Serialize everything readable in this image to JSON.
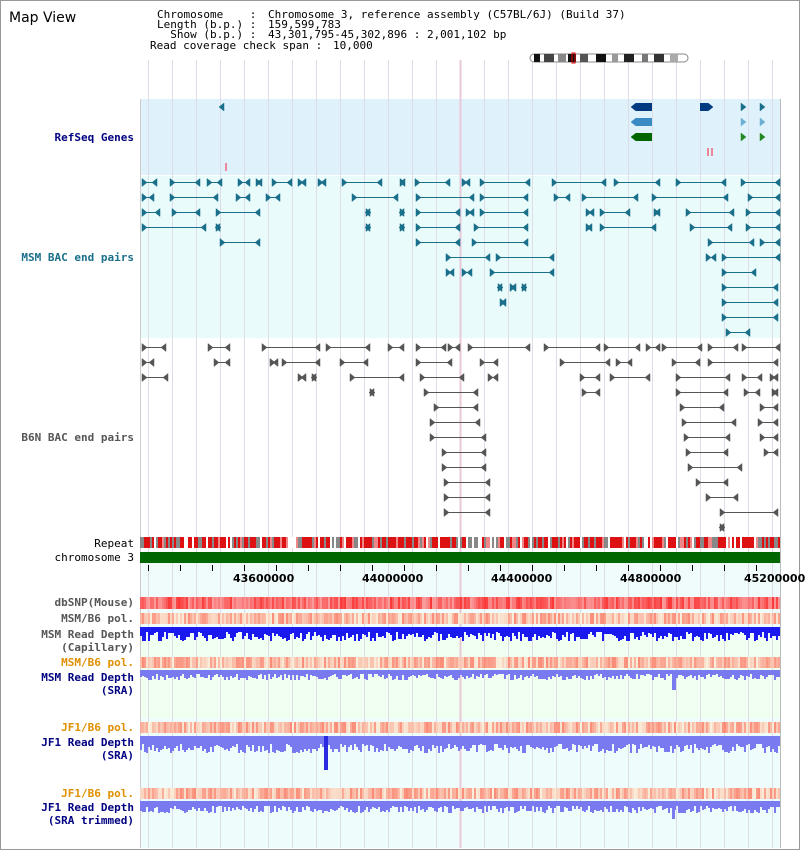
{
  "view_title": "Map View",
  "info": {
    "chromosome_label": "Chromosome    :",
    "chromosome_value": "Chromosome 3, reference assembly (C57BL/6J) (Build 37)",
    "length_label": "Length (b.p.) :",
    "length_value": "159,599,783",
    "show_label": "  Show (b.p.) :",
    "show_value": "43,301,795-45,302,896 : 2,001,102 bp",
    "coverage_label": "Read coverage check span :",
    "coverage_value": "10,000"
  },
  "tracks": {
    "refseq": "RefSeq Genes",
    "msm_bac": "MSM BAC end pairs",
    "b6n_bac": "B6N BAC end pairs",
    "repeat": "Repeat",
    "chromosome": "chromosome 3",
    "dbsnp": "dbSNP(Mouse)",
    "msm_b6_pol_1": "MSM/B6 pol.",
    "msm_depth_cap_1": "MSM Read Depth",
    "msm_depth_cap_2": "(Capillary)",
    "msm_b6_pol_2": "MSM/B6 pol.",
    "msm_depth_sra_1": "MSM Read Depth",
    "msm_depth_sra_2": "(SRA)",
    "jf1_b6_pol_1": "JF1/B6 pol.",
    "jf1_depth_sra_1": "JF1 Read Depth",
    "jf1_depth_sra_2": "(SRA)",
    "jf1_b6_pol_2": "JF1/B6 pol.",
    "jf1_depth_trim_1": "JF1 Read Depth",
    "jf1_depth_trim_2": "(SRA trimmed)"
  },
  "axis_ticks": [
    "43600000",
    "44000000",
    "44400000",
    "44800000",
    "45200000"
  ],
  "colors": {
    "refseq_bg": "#dff2fb",
    "msm_bac_bg": "#e9fbfb",
    "msm_bac_line": "#1a6f8a",
    "b6n_line": "#555555",
    "chromosome": "#006600",
    "depth_dark": "#1a1aee",
    "depth_light": "#7a7af0",
    "label_navy": "#000080",
    "label_orange": "#e09000"
  }
}
